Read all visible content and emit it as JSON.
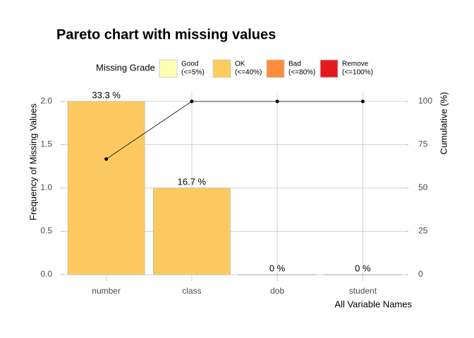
{
  "chart_data": {
    "type": "pareto",
    "title": "Pareto chart with missing values",
    "legend_title": "Missing Grade",
    "legend": [
      {
        "name": "Good",
        "range": "(<=5%)",
        "color": "#ffffb2"
      },
      {
        "name": "OK",
        "range": "(<=40%)",
        "color": "#fecc5c"
      },
      {
        "name": "Bad",
        "range": "(<=80%)",
        "color": "#fd8d3c"
      },
      {
        "name": "Remove",
        "range": "(<=100%)",
        "color": "#e31a1c"
      }
    ],
    "x_label": "All Variable Names",
    "y_label": "Frequency of Missing Values",
    "y2_label": "Cumulative (%)",
    "categories": [
      "number",
      "class",
      "dob",
      "student"
    ],
    "values": [
      2,
      1,
      0,
      0
    ],
    "color": "#fcca60",
    "percent": {
      "values": [
        33.3,
        16.7,
        0,
        0
      ],
      "value_labels": [
        "33.3 %",
        "16.7 %",
        "0 %",
        "0 %"
      ]
    },
    "cumulative": {
      "values": [
        66.7,
        100,
        100,
        100
      ],
      "axis": "y2",
      "color": "#000000"
    },
    "ylim": [
      -0.08,
      2.1
    ],
    "yticks": [
      {
        "value": 0,
        "label": "0.0"
      },
      {
        "value": 0.5,
        "label": "0.5"
      },
      {
        "value": 1,
        "label": "1.0"
      },
      {
        "value": 1.5,
        "label": "1.5"
      },
      {
        "value": 2,
        "label": "2.0"
      }
    ],
    "y2lim": [
      -4,
      105
    ],
    "y2ticks": [
      0,
      25,
      50,
      75,
      100
    ],
    "grid": true
  }
}
